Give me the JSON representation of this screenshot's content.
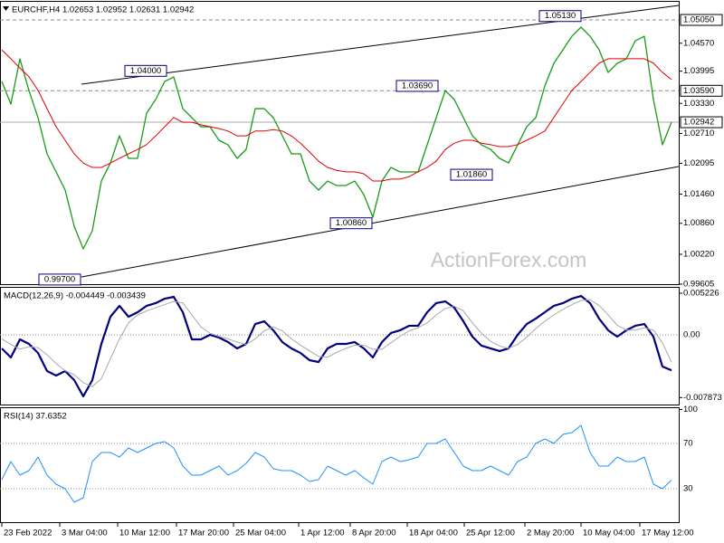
{
  "chart_data": [
    {
      "type": "line",
      "title": "EURCHF,H4 1.02653 1.02952 1.02631 1.02942",
      "watermark": "ActionForex.com",
      "x": [
        0,
        1,
        2,
        3,
        4,
        5,
        6,
        7,
        8,
        9,
        10,
        11,
        12,
        13,
        14,
        15,
        16,
        17,
        18,
        19,
        20,
        21,
        22,
        23,
        24,
        25,
        26,
        27,
        28,
        29,
        30,
        31,
        32,
        33,
        34,
        35,
        36,
        37,
        38,
        39,
        40,
        41,
        42,
        43,
        44,
        45,
        46,
        47,
        48,
        49,
        50,
        51,
        52,
        53,
        54,
        55,
        56,
        57,
        58,
        59,
        60,
        61,
        62,
        63,
        64,
        65,
        66,
        67,
        68,
        69,
        70,
        71,
        72,
        73,
        74
      ],
      "xlim": [
        -0.2,
        74.8
      ],
      "ylim": [
        0.99586,
        1.05442
      ],
      "yticks": [
        {
          "value": 1.0457,
          "label": "1.04570"
        },
        1.03995,
        {
          "value": 1.0333,
          "label": "1.03330"
        },
        {
          "value": 1.0271,
          "label": "1.02710"
        },
        1.02095,
        {
          "value": 1.0146,
          "label": "1.01460"
        },
        {
          "value": 1.0086,
          "label": "1.00860"
        },
        {
          "value": 1.0022,
          "label": "1.00220"
        },
        0.99605
      ],
      "levels": [
        {
          "value": 1.0505,
          "label": "1.05050",
          "style": "dashed",
          "boxed": true
        },
        {
          "value": 1.0359,
          "label": "1.03590",
          "style": "dashed",
          "boxed": true
        },
        {
          "value": 1.02942,
          "label": "1.02942",
          "style": "solid",
          "boxed": true
        }
      ],
      "annotations": [
        {
          "x": 9,
          "value": 0.997,
          "label": "0.99700"
        },
        {
          "x": 18.5,
          "value": 1.04,
          "label": "1.04000"
        },
        {
          "x": 41.2,
          "value": 1.0086,
          "label": "1.00860"
        },
        {
          "x": 48.5,
          "value": 1.0369,
          "label": "1.03690"
        },
        {
          "x": 54.5,
          "value": 1.0186,
          "label": "1.01860"
        },
        {
          "x": 64.3,
          "value": 1.0513,
          "label": "1.05130"
        }
      ],
      "series": [
        {
          "color": "#169c16",
          "width": 1.3,
          "values": [
            1.03782,
            1.03316,
            1.04248,
            1.03595,
            1.03036,
            1.0229,
            1.01917,
            1.01544,
            1.00798,
            1.00332,
            1.00705,
            1.0173,
            1.02103,
            1.02663,
            1.02197,
            1.02197,
            1.03129,
            1.03409,
            1.03782,
            1.03875,
            1.03222,
            1.03036,
            1.02849,
            1.02849,
            1.0257,
            1.02476,
            1.02197,
            1.02383,
            1.03222,
            1.03222,
            1.03036,
            1.02663,
            1.0229,
            1.0229,
            1.0173,
            1.01544,
            1.0173,
            1.01637,
            1.01637,
            1.0173,
            1.01451,
            1.00984,
            1.0173,
            1.0201,
            1.01917,
            1.01917,
            1.01917,
            1.02476,
            1.03036,
            1.03595,
            1.03409,
            1.03036,
            1.02663,
            1.02476,
            1.02383,
            1.02197,
            1.02103,
            1.02476,
            1.02849,
            1.03036,
            1.03689,
            1.04155,
            1.04435,
            1.04714,
            1.04901,
            1.04714,
            1.04435,
            1.03968,
            1.04155,
            1.04248,
            1.04621,
            1.04714,
            1.03409,
            1.02476,
            1.02943
          ]
        },
        {
          "color": "#e00000",
          "width": 1,
          "values": [
            1.0443,
            1.0425,
            1.0406,
            1.0388,
            1.036,
            1.0322,
            1.0285,
            1.0257,
            1.0229,
            1.021,
            1.0201,
            1.0201,
            1.021,
            1.022,
            1.0229,
            1.0238,
            1.0248,
            1.0266,
            1.0285,
            1.0304,
            1.0294,
            1.0294,
            1.0289,
            1.0285,
            1.0281,
            1.0276,
            1.0266,
            1.0266,
            1.0276,
            1.0276,
            1.0279,
            1.0276,
            1.0266,
            1.0251,
            1.0233,
            1.0214,
            1.0201,
            1.0195,
            1.0192,
            1.0192,
            1.0188,
            1.0173,
            1.0173,
            1.0177,
            1.0177,
            1.0182,
            1.0192,
            1.0201,
            1.0214,
            1.0238,
            1.0251,
            1.0257,
            1.0257,
            1.0251,
            1.0248,
            1.0244,
            1.0244,
            1.0248,
            1.0257,
            1.0266,
            1.0276,
            1.0304,
            1.0332,
            1.036,
            1.0378,
            1.0397,
            1.0416,
            1.0425,
            1.0425,
            1.0425,
            1.0425,
            1.0425,
            1.0416,
            1.0397,
            1.0382
          ]
        }
      ]
    },
    {
      "type": "line",
      "title": "MACD(12,26,9) -0.004449 -0.003439",
      "x": [
        0,
        1,
        2,
        3,
        4,
        5,
        6,
        7,
        8,
        9,
        10,
        11,
        12,
        13,
        14,
        15,
        16,
        17,
        18,
        19,
        20,
        21,
        22,
        23,
        24,
        25,
        26,
        27,
        28,
        29,
        30,
        31,
        32,
        33,
        34,
        35,
        36,
        37,
        38,
        39,
        40,
        41,
        42,
        43,
        44,
        45,
        46,
        47,
        48,
        49,
        50,
        51,
        52,
        53,
        54,
        55,
        56,
        57,
        58,
        59,
        60,
        61,
        62,
        63,
        64,
        65,
        66,
        67,
        68,
        69,
        70,
        71,
        72,
        73,
        74
      ],
      "xlim": [
        -0.2,
        74.8
      ],
      "ylim": [
        -0.00886,
        0.00602
      ],
      "yticks": [
        0.005226,
        -0.007873
      ],
      "levels": [
        {
          "value": 0,
          "label": "0.00",
          "style": "dotted"
        }
      ],
      "series": [
        {
          "color": "#00007f",
          "width": 2.2,
          "values": [
            -0.0017,
            -0.00284,
            -0.00057,
            -0.00114,
            -0.00227,
            -0.00454,
            -0.00511,
            -0.00454,
            -0.00568,
            -0.00772,
            -0.00568,
            -0.00114,
            0.00227,
            0.00364,
            0.00227,
            0.00284,
            0.00364,
            0.00398,
            0.00454,
            0.00477,
            0.00284,
            -0.00057,
            -0.00057,
            0,
            -0.00034,
            -0.00091,
            -0.0017,
            -0.00114,
            0.00136,
            0.0017,
            0.00057,
            -0.00091,
            -0.0017,
            -0.00227,
            -0.00318,
            -0.00341,
            -0.0017,
            -0.00114,
            -0.00114,
            -0.00091,
            -0.0017,
            -0.00284,
            -0.00091,
            0.00023,
            0.00057,
            0.00114,
            0.00114,
            0.00284,
            0.00398,
            0.0042,
            0.00341,
            0.0017,
            -0.00023,
            -0.00136,
            -0.0017,
            -0.00204,
            -0.0017,
            0,
            0.00136,
            0.00204,
            0.00284,
            0.00364,
            0.00398,
            0.00454,
            0.00488,
            0.00398,
            0.00204,
            0.00057,
            -0.00023,
            0.00057,
            0.00114,
            0.00136,
            -0.00023,
            -0.00398,
            -0.00445
          ]
        },
        {
          "color": "#a8a8a8",
          "width": 1,
          "values": [
            -0.0005,
            -0.0012,
            -0.0018,
            -0.0015,
            -0.0016,
            -0.0025,
            -0.0036,
            -0.0045,
            -0.005,
            -0.006,
            -0.0065,
            -0.0055,
            -0.003,
            -0.0005,
            0.0015,
            0.0025,
            0.003,
            0.0034,
            0.0038,
            0.0042,
            0.004,
            0.0025,
            0.001,
            0.0002,
            -0.0002,
            -0.0005,
            -0.0009,
            -0.0012,
            -0.0005,
            0.0005,
            0.001,
            0.0005,
            -0.0005,
            -0.0013,
            -0.002,
            -0.0027,
            -0.0028,
            -0.0022,
            -0.0017,
            -0.0013,
            -0.0013,
            -0.0018,
            -0.0018,
            -0.001,
            -0.0002,
            0.0005,
            0.0009,
            0.0015,
            0.0025,
            0.0033,
            0.0036,
            0.003,
            0.0015,
            0.0002,
            -0.0008,
            -0.0014,
            -0.0017,
            -0.0012,
            -0.0003,
            0.0008,
            0.0017,
            0.0025,
            0.0032,
            0.0038,
            0.0043,
            0.0044,
            0.0037,
            0.0025,
            0.0012,
            0.0006,
            0.0006,
            0.0009,
            0.0006,
            -0.001,
            -0.00344
          ]
        }
      ]
    },
    {
      "type": "line",
      "title": "RSI(14) 37.6352",
      "x": [
        0,
        1,
        2,
        3,
        4,
        5,
        6,
        7,
        8,
        9,
        10,
        11,
        12,
        13,
        14,
        15,
        16,
        17,
        18,
        19,
        20,
        21,
        22,
        23,
        24,
        25,
        26,
        27,
        28,
        29,
        30,
        31,
        32,
        33,
        34,
        35,
        36,
        37,
        38,
        39,
        40,
        41,
        42,
        43,
        44,
        45,
        46,
        47,
        48,
        49,
        50,
        51,
        52,
        53,
        54,
        55,
        56,
        57,
        58,
        59,
        60,
        61,
        62,
        63,
        64,
        65,
        66,
        67,
        68,
        69,
        70,
        71,
        72,
        73,
        74
      ],
      "xlim": [
        -0.2,
        74.8
      ],
      "ylim": [
        -0.4,
        102
      ],
      "yticks": [
        100
      ],
      "levels": [
        {
          "value": 70,
          "style": "dotted"
        },
        {
          "value": 30,
          "style": "dotted"
        }
      ],
      "xticks": [
        {
          "value": 0,
          "label": "23 Feb 2022"
        },
        {
          "value": 6.4,
          "label": "3 Mar 04:00"
        },
        {
          "value": 12.8,
          "label": "10 Mar 12:00"
        },
        {
          "value": 19.3,
          "label": "17 Mar 20:00"
        },
        {
          "value": 25.6,
          "label": "25 Mar 04:00"
        },
        {
          "value": 32.8,
          "label": "1 Apr 12:00"
        },
        {
          "value": 38.5,
          "label": "8 Apr 20:00"
        },
        {
          "value": 44.8,
          "label": "18 Apr 04:00"
        },
        {
          "value": 51.1,
          "label": "25 Apr 12:00"
        },
        {
          "value": 57.8,
          "label": "2 May 20:00"
        },
        {
          "value": 64,
          "label": "10 May 04:00"
        },
        {
          "value": 70.5,
          "label": "17 May 12:00"
        }
      ],
      "series": [
        {
          "color": "#1e90ff",
          "width": 1,
          "values": [
            38,
            54,
            42,
            46,
            58,
            42,
            34,
            30,
            18,
            22,
            54,
            62,
            62,
            58,
            66,
            62,
            66,
            70,
            71.6,
            66,
            50,
            42,
            42,
            46,
            50,
            42,
            46,
            52.4,
            62,
            58,
            47.6,
            46,
            46,
            42,
            36.4,
            38,
            50,
            46,
            42,
            46,
            39.6,
            34,
            54,
            58,
            54,
            55.6,
            58,
            70,
            70,
            74,
            62,
            50,
            46,
            46,
            50,
            46,
            42,
            54,
            58,
            70,
            74,
            70,
            78,
            79.6,
            86,
            62,
            50,
            50,
            58,
            54,
            54,
            58,
            34,
            30,
            37.6
          ]
        }
      ]
    }
  ]
}
